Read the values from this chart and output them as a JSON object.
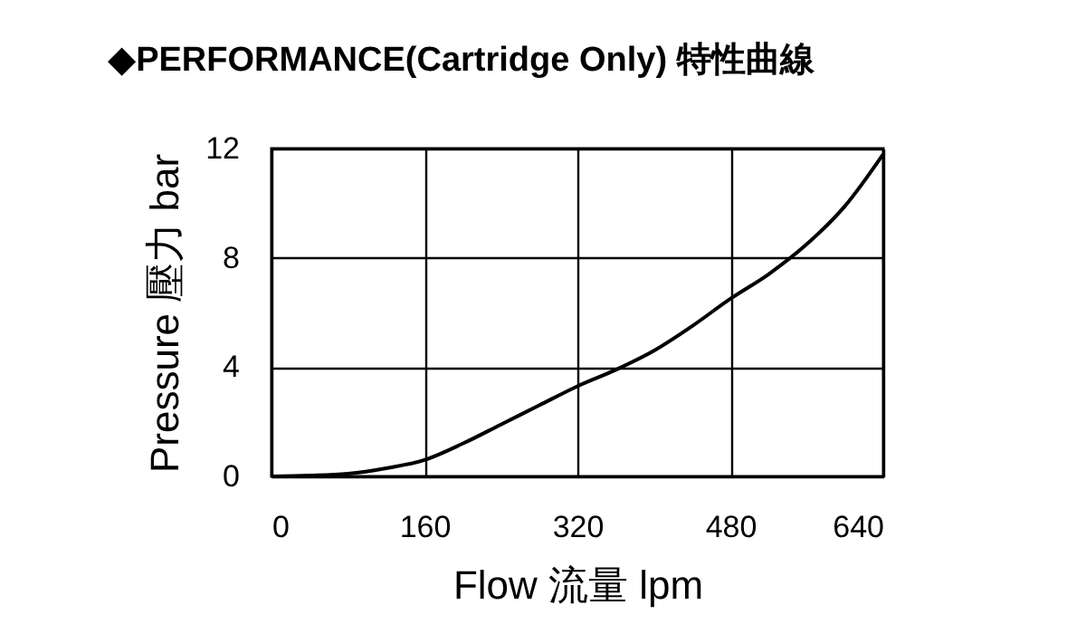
{
  "chart_data": {
    "type": "line",
    "title": "◆PERFORMANCE(Cartridge Only) 特性曲線",
    "xlabel": "Flow 流量 lpm",
    "ylabel": "Pressure 壓力 bar",
    "x": [
      0,
      40,
      80,
      120,
      160,
      200,
      240,
      280,
      320,
      360,
      400,
      440,
      480,
      520,
      560,
      600,
      640
    ],
    "series": [
      {
        "color": "#000000",
        "values": [
          0,
          0.03,
          0.1,
          0.3,
          0.6,
          1.2,
          1.9,
          2.6,
          3.3,
          3.9,
          4.6,
          5.5,
          6.5,
          7.4,
          8.5,
          9.9,
          11.8
        ]
      }
    ],
    "xlim": [
      0,
      640
    ],
    "xticks": [
      0,
      160,
      320,
      480,
      640
    ],
    "ylim": [
      0,
      12
    ],
    "yticks": [
      0,
      4,
      8,
      12
    ],
    "grid": true,
    "marker": "none",
    "line_style": "solid"
  }
}
